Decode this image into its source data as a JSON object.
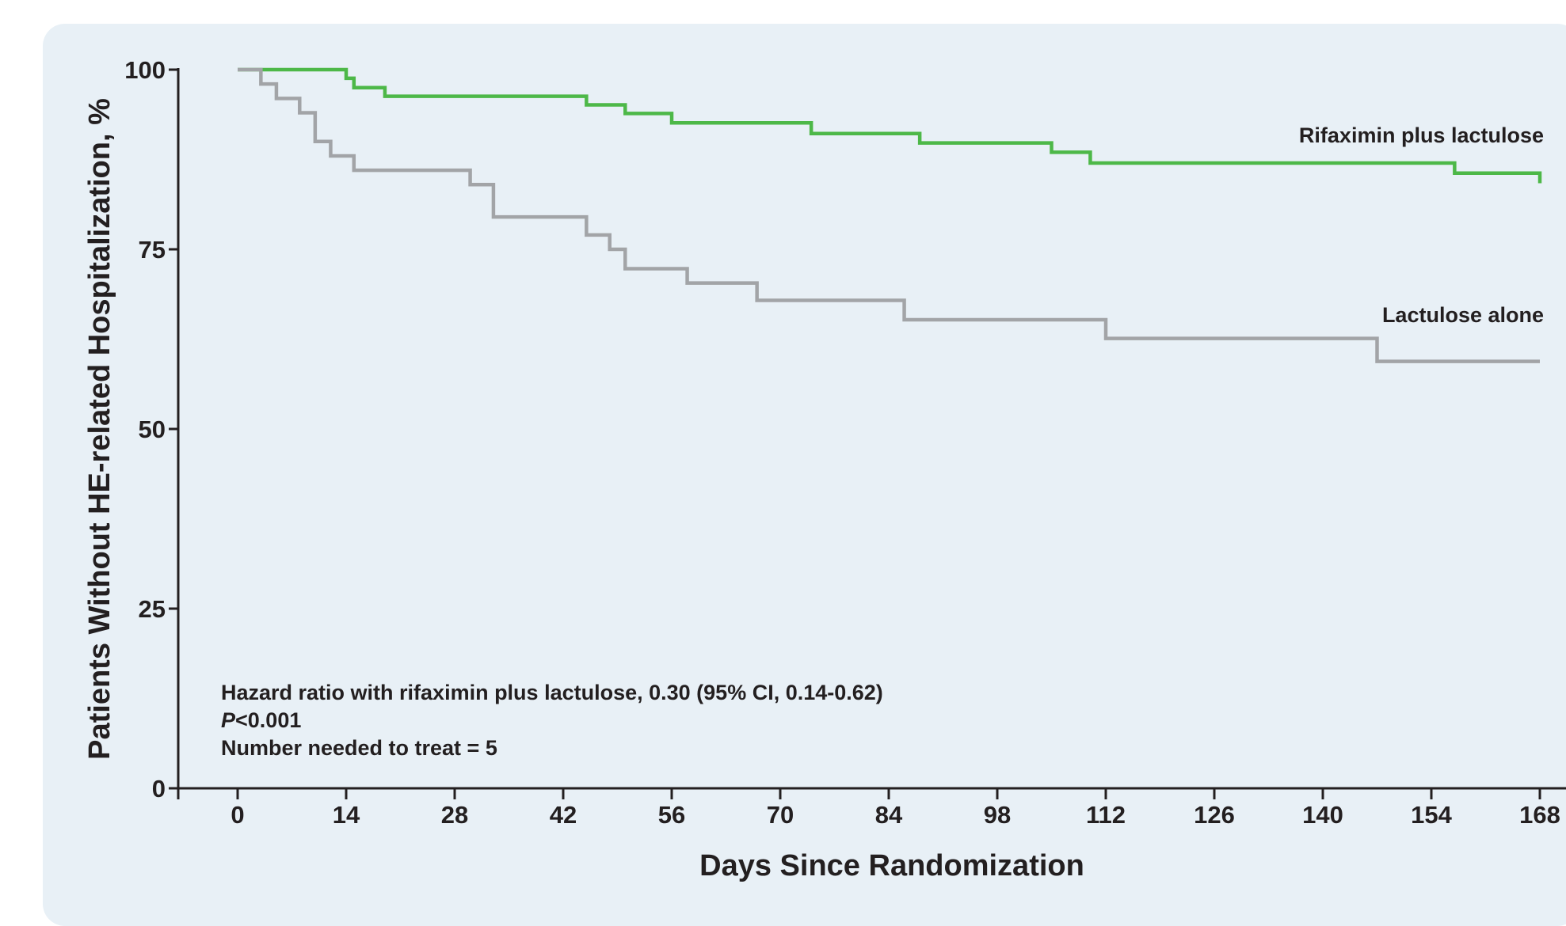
{
  "chart_data": {
    "type": "line",
    "step": true,
    "xlabel": "Days Since Randomization",
    "ylabel": "Patients Without HE-related Hospitalization, %",
    "xlim": [
      -5,
      168
    ],
    "ylim": [
      0,
      100
    ],
    "xticks": [
      "0",
      "14",
      "28",
      "42",
      "56",
      "70",
      "84",
      "98",
      "112",
      "126",
      "140",
      "154",
      "168"
    ],
    "yticks": [
      "0",
      "25",
      "50",
      "75",
      "100"
    ],
    "grid": false,
    "legend": "none",
    "series": [
      {
        "name": "Rifaximin plus lactulose",
        "color": "#4db848",
        "x": [
          0,
          14,
          15,
          19,
          45,
          50,
          56,
          74,
          88,
          105,
          110,
          157,
          168
        ],
        "y": [
          100,
          98.8,
          97.5,
          96.3,
          95.1,
          93.9,
          92.6,
          91.1,
          89.8,
          88.5,
          87.0,
          85.6,
          84.2
        ]
      },
      {
        "name": "Lactulose alone",
        "color": "#a2a4a7",
        "x": [
          0,
          3,
          5,
          8,
          10,
          12,
          15,
          30,
          33,
          45,
          48,
          50,
          58,
          67,
          86,
          112,
          147,
          168
        ],
        "y": [
          100,
          98.0,
          96.0,
          94.0,
          90.0,
          88.0,
          86.0,
          84.0,
          79.5,
          77.0,
          75.0,
          72.3,
          70.3,
          67.9,
          65.2,
          62.6,
          59.4,
          59.4
        ]
      }
    ],
    "annotations": {
      "hazard": "Hazard ratio with rifaximin plus lactulose, 0.30 (95% CI, 0.14-0.62)",
      "p_letter": "P",
      "p_value": "<0.001",
      "nnt": "Number needed to treat = 5"
    }
  }
}
